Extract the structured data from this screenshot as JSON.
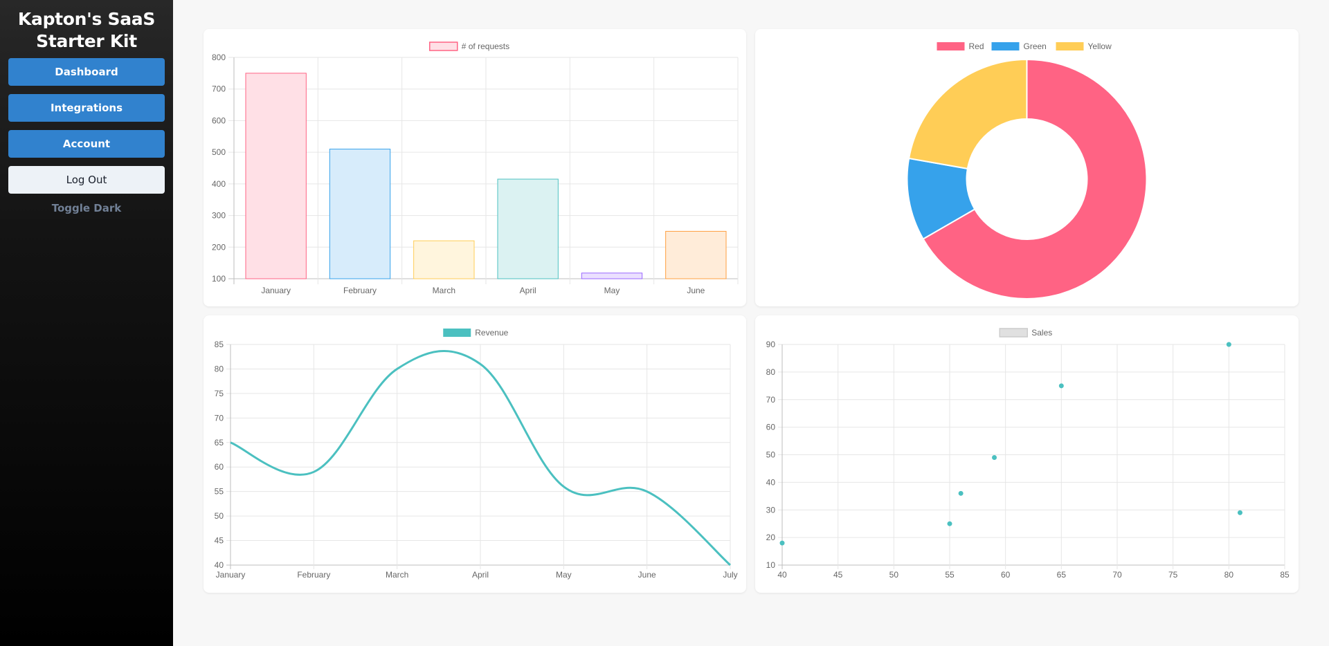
{
  "sidebar": {
    "brand": "Kapton's SaaS Starter Kit",
    "nav": [
      "Dashboard",
      "Integrations",
      "Account"
    ],
    "logout": "Log Out",
    "toggle": "Toggle Dark"
  },
  "chart_data": [
    {
      "type": "bar",
      "legend": "# of requests",
      "categories": [
        "January",
        "February",
        "March",
        "April",
        "May",
        "June"
      ],
      "values": [
        750,
        510,
        220,
        415,
        118,
        250
      ],
      "ylim": [
        100,
        800
      ],
      "yticks": [
        100,
        200,
        300,
        400,
        500,
        600,
        700,
        800
      ],
      "fills": [
        "#ffe0e6",
        "#d7ecfb",
        "#fff5dd",
        "#dbf2f2",
        "#ebe0ff",
        "#ffecd9"
      ],
      "strokes": [
        "#ff6384",
        "#36a2eb",
        "#ffcd56",
        "#4bc0c0",
        "#9966ff",
        "#ff9f40"
      ],
      "grid": true
    },
    {
      "type": "pie",
      "legend_position": "top",
      "series": [
        {
          "name": "Red",
          "value": 300,
          "color": "#ff6384"
        },
        {
          "name": "Green",
          "value": 50,
          "color": "#36a2eb"
        },
        {
          "name": "Yellow",
          "value": 100,
          "color": "#ffcd56"
        }
      ]
    },
    {
      "type": "line",
      "legend": "Revenue",
      "color": "#4bc0c0",
      "categories": [
        "January",
        "February",
        "March",
        "April",
        "May",
        "June",
        "July"
      ],
      "values": [
        65,
        59,
        80,
        81,
        56,
        55,
        40
      ],
      "ylim": [
        40,
        85
      ],
      "yticks": [
        40,
        45,
        50,
        55,
        60,
        65,
        70,
        75,
        80,
        85
      ],
      "grid": true
    },
    {
      "type": "scatter",
      "legend": "Sales",
      "color": "#4bc0c0",
      "points": [
        [
          40,
          18
        ],
        [
          55,
          25
        ],
        [
          56,
          36
        ],
        [
          59,
          49
        ],
        [
          65,
          75
        ],
        [
          80,
          90
        ],
        [
          81,
          29
        ]
      ],
      "xlim": [
        40,
        85
      ],
      "xticks": [
        40,
        45,
        50,
        55,
        60,
        65,
        70,
        75,
        80,
        85
      ],
      "ylim": [
        10,
        90
      ],
      "yticks": [
        10,
        20,
        30,
        40,
        50,
        60,
        70,
        80,
        90
      ],
      "grid": true
    }
  ]
}
